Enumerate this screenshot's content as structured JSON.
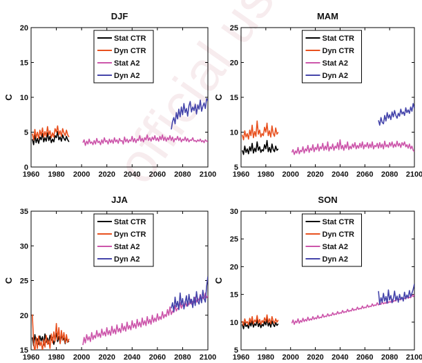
{
  "watermark": "official use only",
  "chart_data": [
    {
      "type": "line",
      "title": "DJF",
      "ylabel": "C",
      "xlim": [
        1960,
        2100
      ],
      "ylim": [
        0,
        20
      ],
      "yticks": [
        0,
        5,
        10,
        15,
        20
      ],
      "xticks": [
        1960,
        1980,
        2000,
        2020,
        2040,
        2060,
        2080,
        2100
      ],
      "legend": "top-center",
      "series": [
        {
          "name": "Stat CTR",
          "color": "#000000",
          "x_start": 1961,
          "values": [
            4.0,
            3.2,
            4.6,
            3.5,
            4.1,
            3.4,
            4.3,
            3.9,
            4.8,
            3.6,
            4.2,
            3.7,
            4.9,
            3.8,
            4.4,
            3.5,
            4.0,
            3.6,
            4.5,
            4.2,
            5.1,
            3.9,
            4.3,
            3.7,
            4.6,
            4.1,
            3.8,
            4.4,
            3.9,
            3.6
          ]
        },
        {
          "name": "Dyn CTR",
          "color": "#e8501e",
          "x_start": 1961,
          "values": [
            4.8,
            3.9,
            5.4,
            4.2,
            5.0,
            4.1,
            5.3,
            4.5,
            5.6,
            4.3,
            5.1,
            4.4,
            5.8,
            4.6,
            5.2,
            4.2,
            4.9,
            4.3,
            5.5,
            5.0,
            5.9,
            4.6,
            5.2,
            4.4,
            5.5,
            4.9,
            4.5,
            5.3,
            4.6,
            4.3
          ]
        },
        {
          "name": "Stat A2",
          "color": "#cc55aa",
          "x_start": 2001,
          "values": [
            3.5,
            3.9,
            3.1,
            3.7,
            3.3,
            4.0,
            3.4,
            3.6,
            3.2,
            3.8,
            3.3,
            4.1,
            3.5,
            3.7,
            3.2,
            3.9,
            3.4,
            4.2,
            3.6,
            3.8,
            3.3,
            4.0,
            3.5,
            3.9,
            3.4,
            4.2,
            3.6,
            3.9,
            3.4,
            4.1,
            3.7,
            3.8,
            3.3,
            4.3,
            3.6,
            4.0,
            3.5,
            3.9,
            3.7,
            4.4,
            3.6,
            4.1,
            3.5,
            4.0,
            3.8,
            4.5,
            3.7,
            4.1,
            3.6,
            4.2,
            3.9,
            4.6,
            3.8,
            4.2,
            3.7,
            4.3,
            3.9,
            4.5,
            3.8,
            4.2,
            3.7,
            4.4,
            3.9,
            4.6,
            3.8,
            4.3,
            3.7,
            4.2,
            3.9,
            4.5,
            3.8,
            4.3,
            3.6,
            4.1,
            3.9,
            4.4,
            3.8,
            4.2,
            3.6,
            4.0,
            3.8,
            4.3,
            3.7,
            4.1,
            3.6,
            3.9,
            3.8,
            4.2,
            3.7,
            3.8,
            3.6,
            3.9,
            3.7,
            4.0,
            3.6,
            3.8,
            3.5,
            3.9,
            3.7,
            3.6
          ]
        },
        {
          "name": "Dyn A2",
          "color": "#4444aa",
          "x_start": 2071,
          "values": [
            5.4,
            6.5,
            7.1,
            6.2,
            7.8,
            6.9,
            8.3,
            7.2,
            8.6,
            7.5,
            9.1,
            7.8,
            8.4,
            7.3,
            8.8,
            9.4,
            7.9,
            8.6,
            8.1,
            9.0,
            7.6,
            8.9,
            8.3,
            9.6,
            8.0,
            8.7,
            9.2,
            8.4,
            9.8,
            9.5
          ]
        }
      ]
    },
    {
      "type": "line",
      "title": "MAM",
      "ylabel": "C",
      "xlim": [
        1960,
        2100
      ],
      "ylim": [
        5,
        25
      ],
      "yticks": [
        5,
        10,
        15,
        20,
        25
      ],
      "xticks": [
        1960,
        1980,
        2000,
        2020,
        2040,
        2060,
        2080,
        2100
      ],
      "legend": "top-center",
      "series": [
        {
          "name": "Stat CTR",
          "color": "#000000",
          "x_start": 1961,
          "values": [
            7.4,
            6.8,
            8.0,
            7.1,
            7.6,
            6.9,
            7.9,
            7.3,
            8.4,
            7.0,
            7.7,
            7.2,
            8.6,
            7.4,
            7.9,
            7.1,
            7.5,
            7.3,
            8.2,
            7.6,
            8.8,
            7.2,
            7.8,
            7.1,
            8.3,
            7.5,
            7.2,
            8.0,
            7.4,
            7.6
          ]
        },
        {
          "name": "Dyn CTR",
          "color": "#e8501e",
          "x_start": 1961,
          "values": [
            9.6,
            8.9,
            10.2,
            9.3,
            9.8,
            9.0,
            10.3,
            9.5,
            11.0,
            9.2,
            10.1,
            9.4,
            11.6,
            9.7,
            10.3,
            9.3,
            9.8,
            9.5,
            10.7,
            10.0,
            11.3,
            9.5,
            10.2,
            9.3,
            10.9,
            9.8,
            9.4,
            10.6,
            9.7,
            10.0
          ]
        },
        {
          "name": "Stat A2",
          "color": "#cc55aa",
          "x_start": 2001,
          "values": [
            7.1,
            7.5,
            6.8,
            7.3,
            7.0,
            7.8,
            6.9,
            7.4,
            7.2,
            7.9,
            7.0,
            7.6,
            7.3,
            8.1,
            7.1,
            7.7,
            7.4,
            8.2,
            7.2,
            7.8,
            7.5,
            8.3,
            7.3,
            7.9,
            7.6,
            8.4,
            7.4,
            8.0,
            7.5,
            8.6,
            7.3,
            7.9,
            7.6,
            8.3,
            7.4,
            8.0,
            7.7,
            8.5,
            7.5,
            8.9,
            7.6,
            8.1,
            7.4,
            8.2,
            7.7,
            8.6,
            7.5,
            8.0,
            7.6,
            8.3,
            7.8,
            8.5,
            7.6,
            8.1,
            7.7,
            8.4,
            7.8,
            8.6,
            7.6,
            8.2,
            7.9,
            8.5,
            7.7,
            8.3,
            7.8,
            8.6,
            7.6,
            8.1,
            7.9,
            8.4,
            7.7,
            8.5,
            7.8,
            8.3,
            7.6,
            8.7,
            7.9,
            8.2,
            7.8,
            8.5,
            8.0,
            8.6,
            7.8,
            8.3,
            7.9,
            8.7,
            8.0,
            8.4,
            7.8,
            8.5,
            8.1,
            8.6,
            7.9,
            8.2,
            7.7,
            8.3,
            7.6,
            8.0,
            7.4,
            7.2
          ]
        },
        {
          "name": "Dyn A2",
          "color": "#4444aa",
          "x_start": 2071,
          "values": [
            11.7,
            11.0,
            12.1,
            11.4,
            11.2,
            12.4,
            11.6,
            12.8,
            12.0,
            12.5,
            11.8,
            12.9,
            12.2,
            13.1,
            12.4,
            12.0,
            12.7,
            12.3,
            13.3,
            12.6,
            12.9,
            12.4,
            13.5,
            12.8,
            13.2,
            12.7,
            13.6,
            13.0,
            14.1,
            13.4
          ]
        }
      ]
    },
    {
      "type": "line",
      "title": "JJA",
      "ylabel": "C",
      "xlim": [
        1960,
        2100
      ],
      "ylim": [
        15,
        35
      ],
      "yticks": [
        15,
        20,
        25,
        30,
        35
      ],
      "xticks": [
        1960,
        1980,
        2000,
        2020,
        2040,
        2060,
        2080,
        2100
      ],
      "legend": "top-center",
      "series": [
        {
          "name": "Stat CTR",
          "color": "#000000",
          "x_start": 1961,
          "values": [
            16.8,
            15.6,
            17.2,
            16.0,
            16.6,
            15.8,
            17.0,
            16.3,
            16.9,
            15.7,
            17.3,
            16.1,
            16.7,
            15.9,
            17.1,
            16.4,
            16.8,
            15.8,
            16.5,
            17.4,
            16.2,
            16.9,
            16.0,
            17.2,
            16.4,
            16.7,
            15.9,
            16.8,
            16.1,
            16.3
          ]
        },
        {
          "name": "Dyn CTR",
          "color": "#e8501e",
          "x_start": 1961,
          "values": [
            20.1,
            16.0,
            14.6,
            16.8,
            15.2,
            17.0,
            15.6,
            16.2,
            14.9,
            16.5,
            15.4,
            17.1,
            15.8,
            16.4,
            15.2,
            17.3,
            16.0,
            17.6,
            16.2,
            18.8,
            16.5,
            18.2,
            15.9,
            17.8,
            16.4,
            17.5,
            16.0,
            17.2,
            16.1,
            16.6
          ]
        },
        {
          "name": "Stat A2",
          "color": "#cc55aa",
          "x_start": 2001,
          "values": [
            15.7,
            16.8,
            16.0,
            17.2,
            16.4,
            16.9,
            16.2,
            17.5,
            16.5,
            17.1,
            16.7,
            17.8,
            16.9,
            17.4,
            16.8,
            18.0,
            17.1,
            17.6,
            17.0,
            18.2,
            17.2,
            17.8,
            17.1,
            18.4,
            17.4,
            18.0,
            17.3,
            18.6,
            17.6,
            18.1,
            17.5,
            18.8,
            17.8,
            18.4,
            17.7,
            19.0,
            18.0,
            18.5,
            17.9,
            19.2,
            18.2,
            18.8,
            18.1,
            19.4,
            18.4,
            19.0,
            18.3,
            19.6,
            18.6,
            19.2,
            18.5,
            19.8,
            18.8,
            19.4,
            18.7,
            20.0,
            19.0,
            19.6,
            19.1,
            20.2,
            19.3,
            19.8,
            19.4,
            20.5,
            19.6,
            20.1,
            19.8,
            20.8,
            20.0,
            21.2,
            20.1,
            20.6,
            20.4,
            21.4,
            20.6,
            21.0,
            20.9,
            21.8,
            21.0,
            21.5,
            21.2,
            22.0,
            21.3,
            21.8,
            21.5,
            22.3,
            21.6,
            22.0,
            21.8,
            22.6,
            21.9,
            22.4,
            22.1,
            23.0,
            22.2,
            22.6,
            22.3,
            23.2,
            22.5,
            22.8
          ]
        },
        {
          "name": "Dyn A2",
          "color": "#4444aa",
          "x_start": 2071,
          "values": [
            21.0,
            21.8,
            20.5,
            22.6,
            21.2,
            22.0,
            20.8,
            23.2,
            21.5,
            22.4,
            20.9,
            21.8,
            22.8,
            21.3,
            23.0,
            21.7,
            22.3,
            21.1,
            22.6,
            21.4,
            23.4,
            22.0,
            21.6,
            22.9,
            21.8,
            23.6,
            22.4,
            21.9,
            24.2,
            25.6
          ]
        }
      ]
    },
    {
      "type": "line",
      "title": "SON",
      "ylabel": "C",
      "xlim": [
        1960,
        2100
      ],
      "ylim": [
        5,
        30
      ],
      "yticks": [
        5,
        10,
        15,
        20,
        25,
        30
      ],
      "xticks": [
        1960,
        1980,
        2000,
        2020,
        2040,
        2060,
        2080,
        2100
      ],
      "legend": "top-center",
      "series": [
        {
          "name": "Stat CTR",
          "color": "#000000",
          "x_start": 1961,
          "values": [
            9.6,
            8.8,
            9.9,
            9.2,
            9.5,
            8.9,
            10.0,
            9.3,
            10.2,
            9.1,
            9.7,
            9.4,
            10.4,
            9.2,
            9.8,
            9.0,
            9.6,
            9.3,
            10.1,
            9.5,
            10.6,
            9.3,
            9.9,
            9.1,
            10.2,
            9.6,
            9.2,
            9.9,
            9.4,
            9.7
          ]
        },
        {
          "name": "Dyn CTR",
          "color": "#e8501e",
          "x_start": 1961,
          "values": [
            10.2,
            9.4,
            10.6,
            9.8,
            10.1,
            9.5,
            10.7,
            9.9,
            11.0,
            9.7,
            10.4,
            10.0,
            11.2,
            9.8,
            10.5,
            9.6,
            10.3,
            9.9,
            10.8,
            10.1,
            11.3,
            9.9,
            10.6,
            9.7,
            11.0,
            10.2,
            9.8,
            10.6,
            10.0,
            10.4
          ]
        },
        {
          "name": "Stat A2",
          "color": "#cc55aa",
          "x_start": 2001,
          "values": [
            9.8,
            10.4,
            9.6,
            10.2,
            9.9,
            10.6,
            9.8,
            10.3,
            10.0,
            10.7,
            10.1,
            10.5,
            10.2,
            10.9,
            10.3,
            10.6,
            10.4,
            11.0,
            10.5,
            10.8,
            10.6,
            11.2,
            10.7,
            10.9,
            10.8,
            11.4,
            10.9,
            11.1,
            11.0,
            11.5,
            11.1,
            11.3,
            11.2,
            11.7,
            11.3,
            11.5,
            11.4,
            11.9,
            11.5,
            11.7,
            11.6,
            12.1,
            11.7,
            11.9,
            11.8,
            12.3,
            11.9,
            12.1,
            12.0,
            12.5,
            12.1,
            12.3,
            12.2,
            12.7,
            12.3,
            12.5,
            12.4,
            12.9,
            12.5,
            12.7,
            12.6,
            13.1,
            12.7,
            12.9,
            12.8,
            13.3,
            12.9,
            13.1,
            13.0,
            13.5,
            13.1,
            13.3,
            13.2,
            13.7,
            13.3,
            13.5,
            13.4,
            13.9,
            13.5,
            13.7,
            13.6,
            14.1,
            13.7,
            13.9,
            13.8,
            14.3,
            13.9,
            14.1,
            14.0,
            14.5,
            14.1,
            14.3,
            14.2,
            14.7,
            14.3,
            14.5,
            14.4,
            14.9,
            14.6,
            15.0
          ]
        },
        {
          "name": "Dyn A2",
          "color": "#4444aa",
          "x_start": 2071,
          "values": [
            15.6,
            13.2,
            14.4,
            13.6,
            15.2,
            13.8,
            14.6,
            13.4,
            15.8,
            14.0,
            14.8,
            13.5,
            14.2,
            15.6,
            13.9,
            14.7,
            13.6,
            15.0,
            14.1,
            14.5,
            13.8,
            15.4,
            14.2,
            14.9,
            14.4,
            15.7,
            14.6,
            15.2,
            15.9,
            16.9
          ]
        }
      ]
    }
  ]
}
